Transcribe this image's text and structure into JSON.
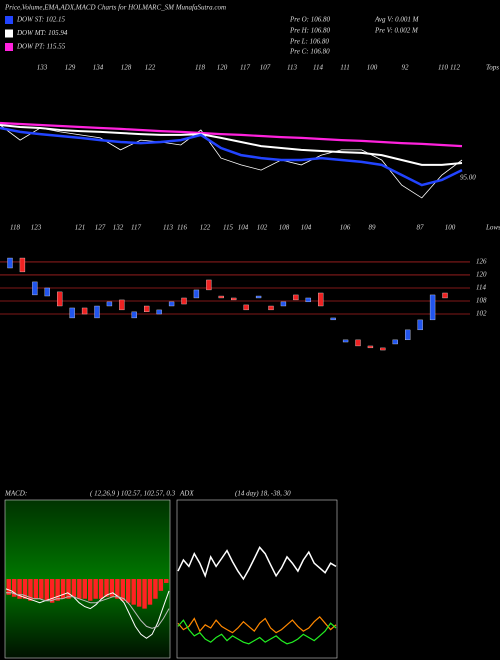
{
  "header": "Price,Volume,EMA,ADX,MACD Charts for HOLMARC_SM MunafaSutra.com",
  "chart_data": [
    {
      "type": "line",
      "info": [
        "Pre O: 106.80",
        "Avg V: 0.001 M",
        "Pre H: 106.80",
        "Pre V: 0.002 M",
        "Pre L: 106.80",
        "Pre C: 106.80"
      ],
      "tops": [
        133,
        129,
        134,
        128,
        122,
        118,
        120,
        117,
        107,
        113,
        114,
        111,
        100,
        92,
        110,
        112
      ],
      "tops_label": "Tops",
      "lows": [
        118,
        123,
        121,
        127,
        132,
        117,
        113,
        116,
        122,
        115,
        104,
        102,
        108,
        104,
        106,
        89,
        87,
        100
      ],
      "lows_label": "Lows",
      "annotation": "95.00",
      "ylim": [
        67,
        167
      ],
      "series": [
        {
          "color": "#ffffff",
          "width": 0.8,
          "values": [
            130.3,
            120.3,
            128.3,
            125.7,
            123.7,
            121.7,
            113.7,
            120.3,
            119,
            117,
            127,
            108.3,
            103.7,
            100.3,
            107,
            103.7,
            110.3,
            113.7,
            113.7,
            107,
            90.3,
            81.7,
            97,
            107
          ]
        },
        {
          "name": "DOW PT: 115.55",
          "color": "#ff22dd",
          "width": 2.2,
          "values": [
            131.7,
            131,
            130.3,
            129.7,
            129,
            128.3,
            127.7,
            127,
            126.3,
            125.7,
            125,
            124.3,
            123.7,
            123,
            122.3,
            121.7,
            121,
            120.3,
            119.7,
            119,
            118.3,
            117.7,
            117,
            116.3
          ]
        },
        {
          "name": "DOW MT: 105.94",
          "color": "#ffffff",
          "width": 2,
          "values": [
            130.3,
            129,
            128.3,
            127,
            126.3,
            125.7,
            125,
            124.3,
            123.7,
            123.7,
            124.3,
            121.7,
            119,
            116.3,
            115,
            113.7,
            113,
            112.3,
            111.7,
            110.3,
            107,
            103.7,
            103.7,
            105
          ]
        },
        {
          "name": "DOW ST: 102.15",
          "color": "#2244ff",
          "width": 2.5,
          "values": [
            128.3,
            125.7,
            124.3,
            123,
            121.7,
            120.3,
            119,
            118.3,
            119,
            120.3,
            123.7,
            115,
            110.3,
            108.3,
            107,
            107,
            108.3,
            107,
            105.7,
            103.7,
            97,
            90.3,
            93.7,
            100.3
          ]
        }
      ]
    },
    {
      "type": "candlestick",
      "ylim": [
        62.4,
        133.8
      ],
      "yticks": [
        126,
        120,
        114,
        108,
        102
      ],
      "grid": true,
      "grid_color": "#aa2222",
      "up_color": "#2255ee",
      "down_color": "#ee2222",
      "open": [
        123.2,
        127.8,
        110.8,
        110.3,
        112.2,
        100.2,
        104.8,
        100.2,
        105.7,
        108.5,
        100.2,
        105.7,
        102,
        105.7,
        109.4,
        109.4,
        117.7,
        110.3,
        109.4,
        106.2,
        109.4,
        105.7,
        105.7,
        110.8,
        107.6,
        111.7,
        99.3,
        89.1,
        90.1,
        87.3,
        86.4,
        88.2,
        90.1,
        94.7,
        99.3,
        111.7
      ],
      "close": [
        127.8,
        121.4,
        116.8,
        114,
        105.7,
        104.8,
        102,
        105.7,
        107.6,
        103.9,
        103,
        103,
        103.9,
        107.6,
        106.6,
        113.1,
        113.1,
        109.4,
        108.5,
        103.9,
        110.3,
        103.9,
        107.6,
        108.5,
        109.4,
        105.7,
        100.2,
        90.1,
        87.3,
        86.4,
        85.4,
        90.1,
        94.7,
        99.3,
        110.8,
        109.4
      ]
    },
    {
      "type": "macd",
      "title": "MACD:",
      "subtitle": "( 12,26,9 ) 102.57, 102.57, 0.3",
      "ylim": [
        -4,
        4
      ],
      "hist_color": "#ff2222",
      "histogram": [
        -0.8,
        -0.9,
        -1,
        -1,
        -1.1,
        -1,
        -1,
        -1.1,
        -1.2,
        -1.1,
        -1,
        -1,
        -0.9,
        -1,
        -1,
        -1.1,
        -1,
        -1,
        -0.9,
        -0.9,
        -1,
        -1.1,
        -1.2,
        -1.3,
        -1.4,
        -1.5,
        -1.3,
        -1,
        -0.6,
        -0.2
      ],
      "series": [
        {
          "color": "#ffffff",
          "values": [
            -0.5,
            -0.6,
            -0.8,
            -0.9,
            -1,
            -1.1,
            -1.2,
            -1.1,
            -1,
            -0.9,
            -0.8,
            -0.7,
            -0.9,
            -1.2,
            -1.4,
            -1.5,
            -1.3,
            -1,
            -0.8,
            -0.7,
            -0.9,
            -1.2,
            -1.8,
            -2.4,
            -2.8,
            -3,
            -2.8,
            -2.2,
            -1.4,
            -0.6
          ]
        },
        {
          "color": "#bbbbbb",
          "values": [
            -0.7,
            -0.7,
            -0.8,
            -0.8,
            -0.9,
            -1,
            -1,
            -1.1,
            -1.1,
            -1,
            -1,
            -0.9,
            -0.9,
            -1,
            -1.1,
            -1.2,
            -1.2,
            -1.1,
            -1,
            -0.9,
            -0.9,
            -1,
            -1.3,
            -1.7,
            -2.1,
            -2.4,
            -2.5,
            -2.4,
            -2,
            -1.5
          ]
        }
      ]
    },
    {
      "type": "adx",
      "title": "ADX",
      "subtitle": "(14 day) 18, -38, 30",
      "ylim": [
        0,
        100
      ],
      "series": [
        {
          "color": "#ffffff",
          "values": [
            55,
            62,
            58,
            66,
            60,
            52,
            64,
            58,
            63,
            68,
            61,
            55,
            50,
            56,
            63,
            70,
            66,
            59,
            52,
            57,
            64,
            60,
            55,
            62,
            67,
            60,
            57,
            54,
            60,
            58
          ]
        },
        {
          "color": "#ff8800",
          "values": [
            22,
            18,
            20,
            25,
            17,
            21,
            19,
            24,
            20,
            18,
            16,
            19,
            23,
            20,
            17,
            22,
            25,
            19,
            16,
            18,
            21,
            24,
            20,
            17,
            19,
            23,
            26,
            22,
            18,
            21
          ]
        },
        {
          "color": "#22ee22",
          "values": [
            20,
            24,
            18,
            14,
            16,
            12,
            10,
            13,
            15,
            11,
            14,
            12,
            10,
            9,
            11,
            13,
            10,
            12,
            14,
            11,
            9,
            10,
            12,
            15,
            13,
            11,
            14,
            17,
            22,
            19
          ]
        }
      ]
    }
  ]
}
